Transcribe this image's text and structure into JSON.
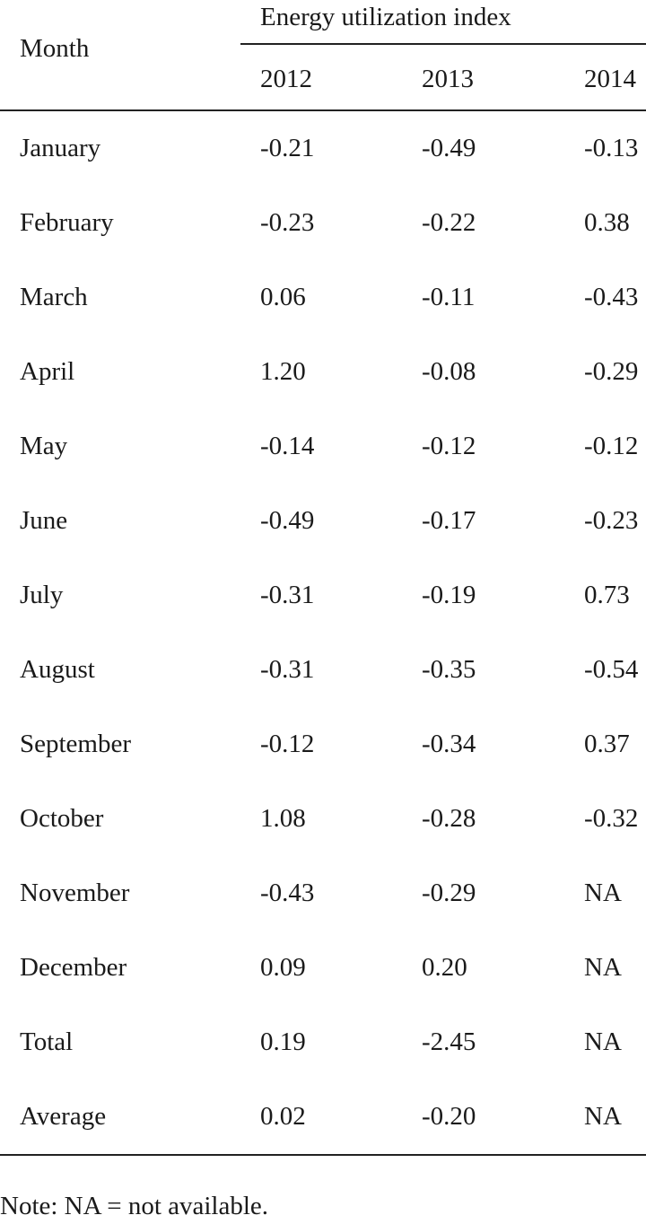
{
  "table": {
    "group_header": "Energy utilization index",
    "month_header": "Month",
    "years": [
      "2012",
      "2013",
      "2014"
    ],
    "rows": [
      {
        "month": "January",
        "v2012": "-0.21",
        "v2013": "-0.49",
        "v2014": "-0.13"
      },
      {
        "month": "February",
        "v2012": "-0.23",
        "v2013": "-0.22",
        "v2014": "0.38"
      },
      {
        "month": "March",
        "v2012": "0.06",
        "v2013": "-0.11",
        "v2014": "-0.43"
      },
      {
        "month": "April",
        "v2012": "1.20",
        "v2013": "-0.08",
        "v2014": "-0.29"
      },
      {
        "month": "May",
        "v2012": "-0.14",
        "v2013": "-0.12",
        "v2014": "-0.12"
      },
      {
        "month": "June",
        "v2012": "-0.49",
        "v2013": "-0.17",
        "v2014": "-0.23"
      },
      {
        "month": "July",
        "v2012": "-0.31",
        "v2013": "-0.19",
        "v2014": "0.73"
      },
      {
        "month": "August",
        "v2012": "-0.31",
        "v2013": "-0.35",
        "v2014": "-0.54"
      },
      {
        "month": "September",
        "v2012": "-0.12",
        "v2013": "-0.34",
        "v2014": "0.37"
      },
      {
        "month": "October",
        "v2012": "1.08",
        "v2013": "-0.28",
        "v2014": "-0.32"
      },
      {
        "month": "November",
        "v2012": "-0.43",
        "v2013": "-0.29",
        "v2014": "NA"
      },
      {
        "month": "December",
        "v2012": "0.09",
        "v2013": "0.20",
        "v2014": "NA"
      },
      {
        "month": "Total",
        "v2012": "0.19",
        "v2013": "-2.45",
        "v2014": "NA"
      },
      {
        "month": "Average",
        "v2012": "0.02",
        "v2013": "-0.20",
        "v2014": "NA"
      }
    ]
  },
  "note": "Note: NA = not available."
}
